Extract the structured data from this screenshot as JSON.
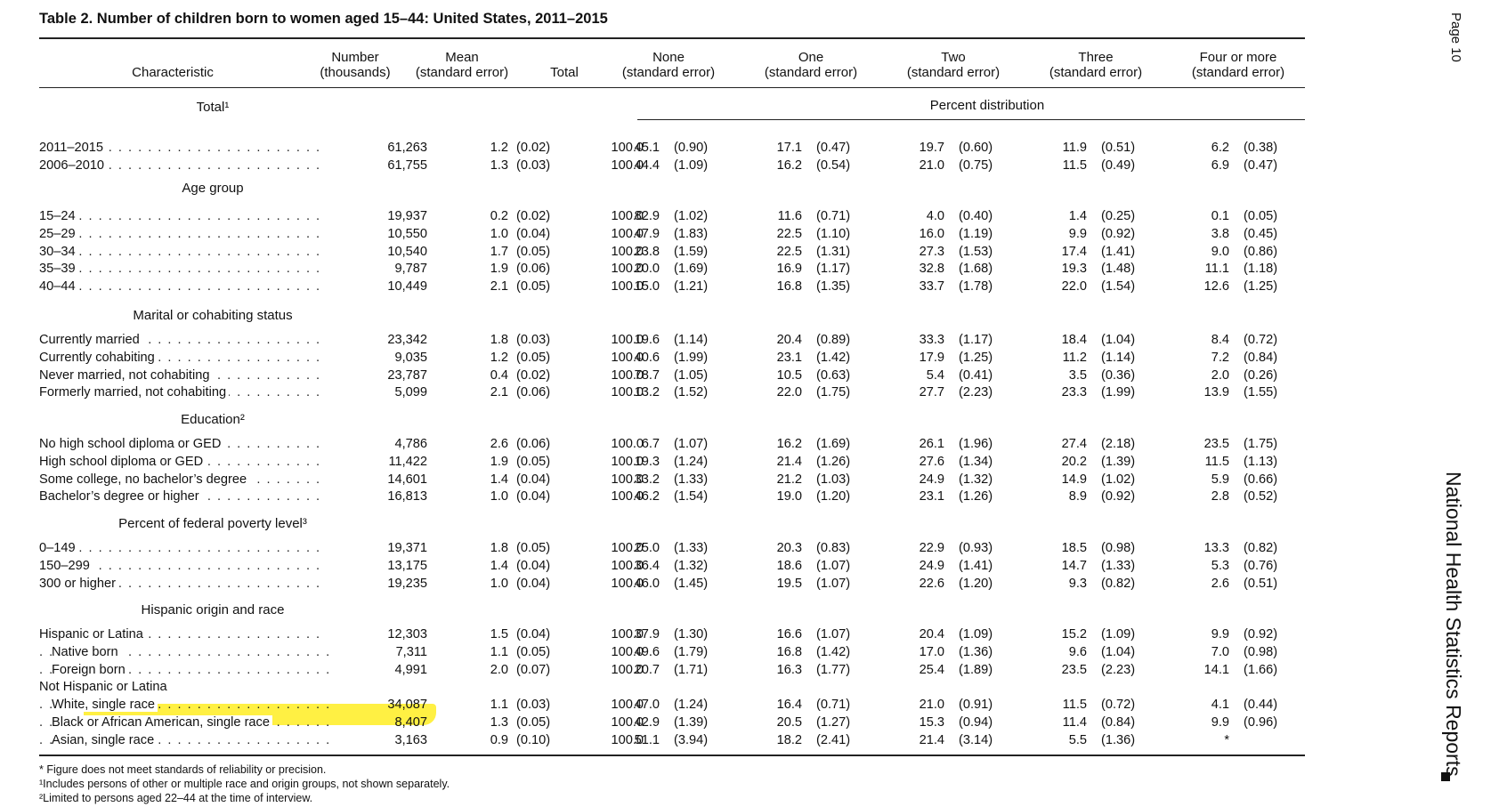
{
  "title": "Table 2. Number of children born to women aged 15–44: United States, 2011–2015",
  "headers": {
    "characteristic": "Characteristic",
    "number": [
      "Number",
      "(thousands)"
    ],
    "mean": [
      "Mean",
      "(standard error)"
    ],
    "total": "Total",
    "none": [
      "None",
      "(standard error)"
    ],
    "one": [
      "One",
      "(standard error)"
    ],
    "two": [
      "Two",
      "(standard error)"
    ],
    "three": [
      "Three",
      "(standard error)"
    ],
    "four": [
      "Four or more",
      "(standard error)"
    ],
    "percent_distribution": "Percent distribution"
  },
  "sections": [
    {
      "heading": "Total¹",
      "rows": [
        {
          "label": "2011–2015",
          "indent": false,
          "number": "61,263",
          "mean": "1.2",
          "mean_se": "(0.02)",
          "total": "100.0",
          "none": "45.1",
          "none_se": "(0.90)",
          "one": "17.1",
          "one_se": "(0.47)",
          "two": "19.7",
          "two_se": "(0.60)",
          "three": "11.9",
          "three_se": "(0.51)",
          "four": "6.2",
          "four_se": "(0.38)"
        },
        {
          "label": "2006–2010",
          "indent": false,
          "number": "61,755",
          "mean": "1.3",
          "mean_se": "(0.03)",
          "total": "100.0",
          "none": "44.4",
          "none_se": "(1.09)",
          "one": "16.2",
          "one_se": "(0.54)",
          "two": "21.0",
          "two_se": "(0.75)",
          "three": "11.5",
          "three_se": "(0.49)",
          "four": "6.9",
          "four_se": "(0.47)"
        }
      ]
    },
    {
      "heading": "Age group",
      "rows": [
        {
          "label": "15–24",
          "indent": false,
          "number": "19,937",
          "mean": "0.2",
          "mean_se": "(0.02)",
          "total": "100.0",
          "none": "82.9",
          "none_se": "(1.02)",
          "one": "11.6",
          "one_se": "(0.71)",
          "two": "4.0",
          "two_se": "(0.40)",
          "three": "1.4",
          "three_se": "(0.25)",
          "four": "0.1",
          "four_se": "(0.05)"
        },
        {
          "label": "25–29",
          "indent": false,
          "number": "10,550",
          "mean": "1.0",
          "mean_se": "(0.04)",
          "total": "100.0",
          "none": "47.9",
          "none_se": "(1.83)",
          "one": "22.5",
          "one_se": "(1.10)",
          "two": "16.0",
          "two_se": "(1.19)",
          "three": "9.9",
          "three_se": "(0.92)",
          "four": "3.8",
          "four_se": "(0.45)"
        },
        {
          "label": "30–34",
          "indent": false,
          "number": "10,540",
          "mean": "1.7",
          "mean_se": "(0.05)",
          "total": "100.0",
          "none": "23.8",
          "none_se": "(1.59)",
          "one": "22.5",
          "one_se": "(1.31)",
          "two": "27.3",
          "two_se": "(1.53)",
          "three": "17.4",
          "three_se": "(1.41)",
          "four": "9.0",
          "four_se": "(0.86)"
        },
        {
          "label": "35–39",
          "indent": false,
          "number": "9,787",
          "mean": "1.9",
          "mean_se": "(0.06)",
          "total": "100.0",
          "none": "20.0",
          "none_se": "(1.69)",
          "one": "16.9",
          "one_se": "(1.17)",
          "two": "32.8",
          "two_se": "(1.68)",
          "three": "19.3",
          "three_se": "(1.48)",
          "four": "11.1",
          "four_se": "(1.18)"
        },
        {
          "label": "40–44",
          "indent": false,
          "number": "10,449",
          "mean": "2.1",
          "mean_se": "(0.05)",
          "total": "100.0",
          "none": "15.0",
          "none_se": "(1.21)",
          "one": "16.8",
          "one_se": "(1.35)",
          "two": "33.7",
          "two_se": "(1.78)",
          "three": "22.0",
          "three_se": "(1.54)",
          "four": "12.6",
          "four_se": "(1.25)"
        }
      ]
    },
    {
      "heading": "Marital or cohabiting status",
      "rows": [
        {
          "label": "Currently married",
          "indent": false,
          "number": "23,342",
          "mean": "1.8",
          "mean_se": "(0.03)",
          "total": "100.0",
          "none": "19.6",
          "none_se": "(1.14)",
          "one": "20.4",
          "one_se": "(0.89)",
          "two": "33.3",
          "two_se": "(1.17)",
          "three": "18.4",
          "three_se": "(1.04)",
          "four": "8.4",
          "four_se": "(0.72)"
        },
        {
          "label": "Currently cohabiting",
          "indent": false,
          "number": "9,035",
          "mean": "1.2",
          "mean_se": "(0.05)",
          "total": "100.0",
          "none": "40.6",
          "none_se": "(1.99)",
          "one": "23.1",
          "one_se": "(1.42)",
          "two": "17.9",
          "two_se": "(1.25)",
          "three": "11.2",
          "three_se": "(1.14)",
          "four": "7.2",
          "four_se": "(0.84)"
        },
        {
          "label": "Never married, not cohabiting",
          "indent": false,
          "number": "23,787",
          "mean": "0.4",
          "mean_se": "(0.02)",
          "total": "100.0",
          "none": "78.7",
          "none_se": "(1.05)",
          "one": "10.5",
          "one_se": "(0.63)",
          "two": "5.4",
          "two_se": "(0.41)",
          "three": "3.5",
          "three_se": "(0.36)",
          "four": "2.0",
          "four_se": "(0.26)"
        },
        {
          "label": "Formerly married, not cohabiting",
          "indent": false,
          "number": "5,099",
          "mean": "2.1",
          "mean_se": "(0.06)",
          "total": "100.0",
          "none": "13.2",
          "none_se": "(1.52)",
          "one": "22.0",
          "one_se": "(1.75)",
          "two": "27.7",
          "two_se": "(2.23)",
          "three": "23.3",
          "three_se": "(1.99)",
          "four": "13.9",
          "four_se": "(1.55)"
        }
      ]
    },
    {
      "heading": "Education²",
      "rows": [
        {
          "label": "No high school diploma or GED",
          "indent": false,
          "number": "4,786",
          "mean": "2.6",
          "mean_se": "(0.06)",
          "total": "100.0",
          "none": "6.7",
          "none_se": "(1.07)",
          "one": "16.2",
          "one_se": "(1.69)",
          "two": "26.1",
          "two_se": "(1.96)",
          "three": "27.4",
          "three_se": "(2.18)",
          "four": "23.5",
          "four_se": "(1.75)"
        },
        {
          "label": "High school diploma or GED",
          "indent": false,
          "number": "11,422",
          "mean": "1.9",
          "mean_se": "(0.05)",
          "total": "100.0",
          "none": "19.3",
          "none_se": "(1.24)",
          "one": "21.4",
          "one_se": "(1.26)",
          "two": "27.6",
          "two_se": "(1.34)",
          "three": "20.2",
          "three_se": "(1.39)",
          "four": "11.5",
          "four_se": "(1.13)"
        },
        {
          "label": "Some college, no bachelor’s degree",
          "indent": false,
          "number": "14,601",
          "mean": "1.4",
          "mean_se": "(0.04)",
          "total": "100.0",
          "none": "33.2",
          "none_se": "(1.33)",
          "one": "21.2",
          "one_se": "(1.03)",
          "two": "24.9",
          "two_se": "(1.32)",
          "three": "14.9",
          "three_se": "(1.02)",
          "four": "5.9",
          "four_se": "(0.66)"
        },
        {
          "label": "Bachelor’s degree or higher",
          "indent": false,
          "number": "16,813",
          "mean": "1.0",
          "mean_se": "(0.04)",
          "total": "100.0",
          "none": "46.2",
          "none_se": "(1.54)",
          "one": "19.0",
          "one_se": "(1.20)",
          "two": "23.1",
          "two_se": "(1.26)",
          "three": "8.9",
          "three_se": "(0.92)",
          "four": "2.8",
          "four_se": "(0.52)"
        }
      ]
    },
    {
      "heading": "Percent of federal poverty level³",
      "rows": [
        {
          "label": "0–149",
          "indent": false,
          "number": "19,371",
          "mean": "1.8",
          "mean_se": "(0.05)",
          "total": "100.0",
          "none": "25.0",
          "none_se": "(1.33)",
          "one": "20.3",
          "one_se": "(0.83)",
          "two": "22.9",
          "two_se": "(0.93)",
          "three": "18.5",
          "three_se": "(0.98)",
          "four": "13.3",
          "four_se": "(0.82)"
        },
        {
          "label": "150–299",
          "indent": false,
          "number": "13,175",
          "mean": "1.4",
          "mean_se": "(0.04)",
          "total": "100.0",
          "none": "36.4",
          "none_se": "(1.32)",
          "one": "18.6",
          "one_se": "(1.07)",
          "two": "24.9",
          "two_se": "(1.41)",
          "three": "14.7",
          "three_se": "(1.33)",
          "four": "5.3",
          "four_se": "(0.76)"
        },
        {
          "label": "300 or higher",
          "indent": false,
          "number": "19,235",
          "mean": "1.0",
          "mean_se": "(0.04)",
          "total": "100.0",
          "none": "46.0",
          "none_se": "(1.45)",
          "one": "19.5",
          "one_se": "(1.07)",
          "two": "22.6",
          "two_se": "(1.20)",
          "three": "9.3",
          "three_se": "(0.82)",
          "four": "2.6",
          "four_se": "(0.51)"
        }
      ]
    },
    {
      "heading": "Hispanic origin and race",
      "rows": [
        {
          "label": "Hispanic or Latina",
          "indent": false,
          "number": "12,303",
          "mean": "1.5",
          "mean_se": "(0.04)",
          "total": "100.0",
          "none": "37.9",
          "none_se": "(1.30)",
          "one": "16.6",
          "one_se": "(1.07)",
          "two": "20.4",
          "two_se": "(1.09)",
          "three": "15.2",
          "three_se": "(1.09)",
          "four": "9.9",
          "four_se": "(0.92)"
        },
        {
          "label": "Native born",
          "indent": true,
          "number": "7,311",
          "mean": "1.1",
          "mean_se": "(0.05)",
          "total": "100.0",
          "none": "49.6",
          "none_se": "(1.79)",
          "one": "16.8",
          "one_se": "(1.42)",
          "two": "17.0",
          "two_se": "(1.36)",
          "three": "9.6",
          "three_se": "(1.04)",
          "four": "7.0",
          "four_se": "(0.98)"
        },
        {
          "label": "Foreign born",
          "indent": true,
          "number": "4,991",
          "mean": "2.0",
          "mean_se": "(0.07)",
          "total": "100.0",
          "none": "20.7",
          "none_se": "(1.71)",
          "one": "16.3",
          "one_se": "(1.77)",
          "two": "25.4",
          "two_se": "(1.89)",
          "three": "23.5",
          "three_se": "(2.23)",
          "four": "14.1",
          "four_se": "(1.66)"
        },
        {
          "label": "Not Hispanic or Latina",
          "indent": false,
          "nodots": true,
          "number": "",
          "mean": "",
          "mean_se": "",
          "total": "",
          "none": "",
          "none_se": "",
          "one": "",
          "one_se": "",
          "two": "",
          "two_se": "",
          "three": "",
          "three_se": "",
          "four": "",
          "four_se": ""
        },
        {
          "label": "White, single race",
          "indent": true,
          "number": "34,087",
          "mean": "1.1",
          "mean_se": "(0.03)",
          "total": "100.0",
          "none": "47.0",
          "none_se": "(1.24)",
          "one": "16.4",
          "one_se": "(0.71)",
          "two": "21.0",
          "two_se": "(0.91)",
          "three": "11.5",
          "three_se": "(0.72)",
          "four": "4.1",
          "four_se": "(0.44)"
        },
        {
          "label": "Black or African American, single race",
          "indent": true,
          "highlight": true,
          "number": "8,407",
          "mean": "1.3",
          "mean_se": "(0.05)",
          "total": "100.0",
          "none": "42.9",
          "none_se": "(1.39)",
          "one": "20.5",
          "one_se": "(1.27)",
          "two": "15.3",
          "two_se": "(0.94)",
          "three": "11.4",
          "three_se": "(0.84)",
          "four": "9.9",
          "four_se": "(0.96)"
        },
        {
          "label": "Asian, single race",
          "indent": true,
          "number": "3,163",
          "mean": "0.9",
          "mean_se": "(0.10)",
          "total": "100.0",
          "none": "51.1",
          "none_se": "(3.94)",
          "one": "18.2",
          "one_se": "(2.41)",
          "two": "21.4",
          "two_se": "(3.14)",
          "three": "5.5",
          "three_se": "(1.36)",
          "four": "*",
          "four_se": ""
        }
      ]
    }
  ],
  "footnotes": [
    "* Figure does not meet standards of reliability or precision.",
    "¹Includes persons of other or multiple race and origin groups, not shown separately.",
    "²Limited to persons aged 22–44 at the time of interview."
  ],
  "sidebar": {
    "page": "Page 10",
    "publication": "National Health Statistics Reports"
  },
  "colors": {
    "highlight": "#ffef33",
    "text": "#111111"
  }
}
